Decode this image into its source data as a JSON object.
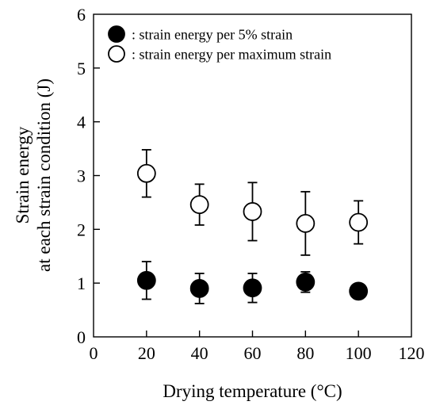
{
  "chart_data": {
    "type": "scatter",
    "xlabel": "Drying temperature (°C)",
    "ylabel_lines": [
      "Strain energy",
      "at each strain condition (J)"
    ],
    "xlim": [
      0,
      120
    ],
    "ylim": [
      0,
      6
    ],
    "xticks": [
      "0",
      "20",
      "40",
      "60",
      "80",
      "100",
      "120"
    ],
    "yticks": [
      "0",
      "1",
      "2",
      "3",
      "4",
      "5",
      "6"
    ],
    "grid": false,
    "legend_position": "top-left",
    "series": [
      {
        "name": ": strain energy per 5% strain",
        "marker": "filled-circle",
        "color": "#000000",
        "x": [
          20,
          40,
          60,
          80,
          100
        ],
        "y": [
          1.05,
          0.9,
          0.91,
          1.02,
          0.85
        ],
        "error": [
          0.35,
          0.28,
          0.27,
          0.19,
          0.13
        ]
      },
      {
        "name": ": strain energy per maximum strain",
        "marker": "open-circle",
        "color": "#000000",
        "x": [
          20,
          40,
          60,
          80,
          100
        ],
        "y": [
          3.04,
          2.46,
          2.33,
          2.11,
          2.13
        ],
        "error": [
          0.44,
          0.38,
          0.54,
          0.59,
          0.4
        ]
      }
    ]
  }
}
